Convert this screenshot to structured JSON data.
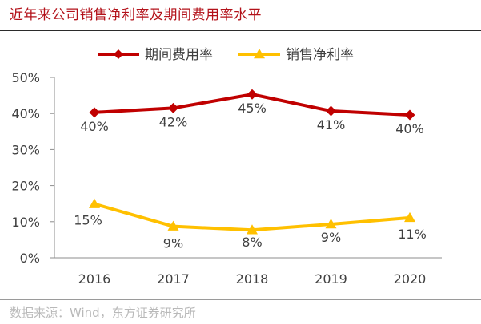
{
  "title": "近年来公司销售净利率及期间费用率水平",
  "source": "数据来源：Wind，东方证券研究所",
  "chart_data": {
    "type": "line",
    "categories": [
      "2016",
      "2017",
      "2018",
      "2019",
      "2020"
    ],
    "ylim": [
      0,
      50
    ],
    "yticks": [
      0,
      10,
      20,
      30,
      40,
      50
    ],
    "ytick_labels": [
      "0%",
      "10%",
      "20%",
      "30%",
      "40%",
      "50%"
    ],
    "legend_position": "top",
    "grid": false,
    "series": [
      {
        "name": "期间费用率",
        "marker": "diamond",
        "color": "#c00000",
        "values": [
          40.3,
          41.5,
          45.3,
          40.7,
          39.6
        ],
        "labels": [
          "40%",
          "42%",
          "45%",
          "41%",
          "40%"
        ],
        "label_position": "below"
      },
      {
        "name": "销售净利率",
        "marker": "triangle",
        "color": "#ffc000",
        "values": [
          14.9,
          8.7,
          7.7,
          9.3,
          11.1
        ],
        "labels": [
          "15%",
          "9%",
          "8%",
          "9%",
          "11%"
        ],
        "label_position": "mixed"
      }
    ]
  }
}
